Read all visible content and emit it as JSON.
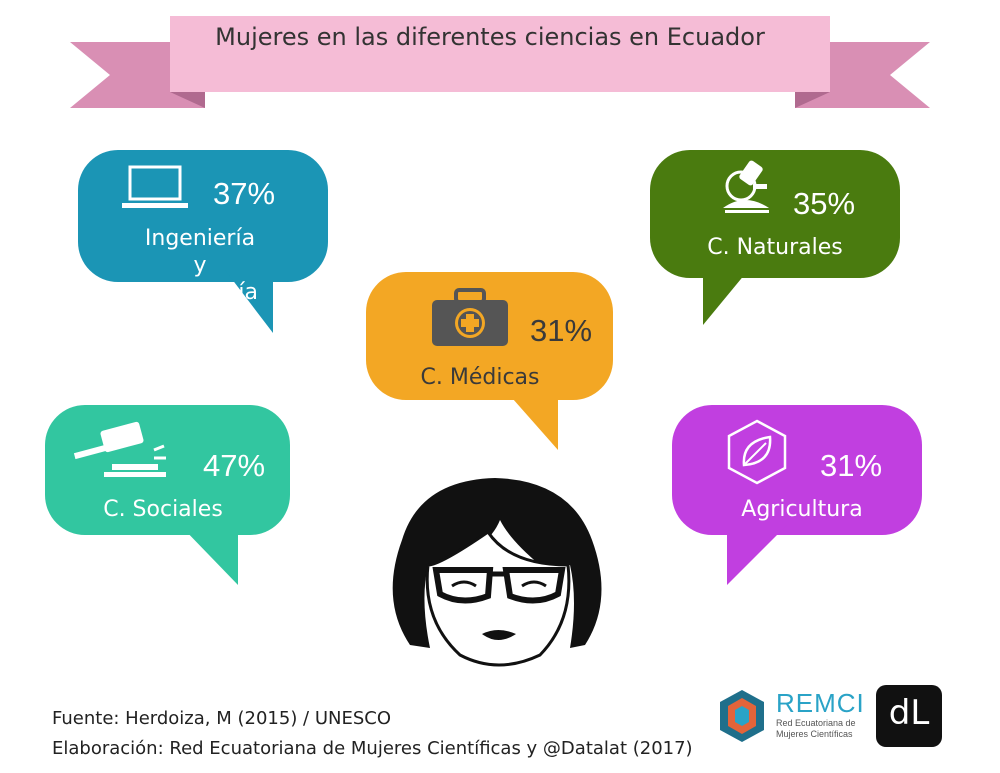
{
  "banner": {
    "title": "Mujeres en las diferentes ciencias en Ecuador"
  },
  "bubbles": [
    {
      "percent": "37%",
      "label": "Ingeniería y Tecnología",
      "color": "#1b95b5",
      "icon": "laptop-icon"
    },
    {
      "percent": "35%",
      "label": "C. Naturales",
      "color": "#4a7b0f",
      "icon": "microscope-icon"
    },
    {
      "percent": "31%",
      "label": "C. Médicas",
      "color": "#f3a724",
      "icon": "medical-kit-icon"
    },
    {
      "percent": "47%",
      "label": "C. Sociales",
      "color": "#32c6a0",
      "icon": "gavel-icon"
    },
    {
      "percent": "31%",
      "label": "Agricultura",
      "color": "#c13fe0",
      "icon": "leaf-hexagon-icon"
    }
  ],
  "colors": {
    "banner_pink": "#f5bcd6",
    "ribbon_pink": "#d98fb4"
  },
  "footer": {
    "source": "Fuente: Herdoiza, M (2015) / UNESCO",
    "credit": "Elaboración: Red Ecuatoriana de Mujeres Científicas y @Datalat (2017)"
  },
  "logos": {
    "remci_name": "REMCI",
    "remci_subtitle_1": "Red Ecuatoriana de",
    "remci_subtitle_2": "Mujeres Científicas",
    "datalat_mark": "dL"
  }
}
